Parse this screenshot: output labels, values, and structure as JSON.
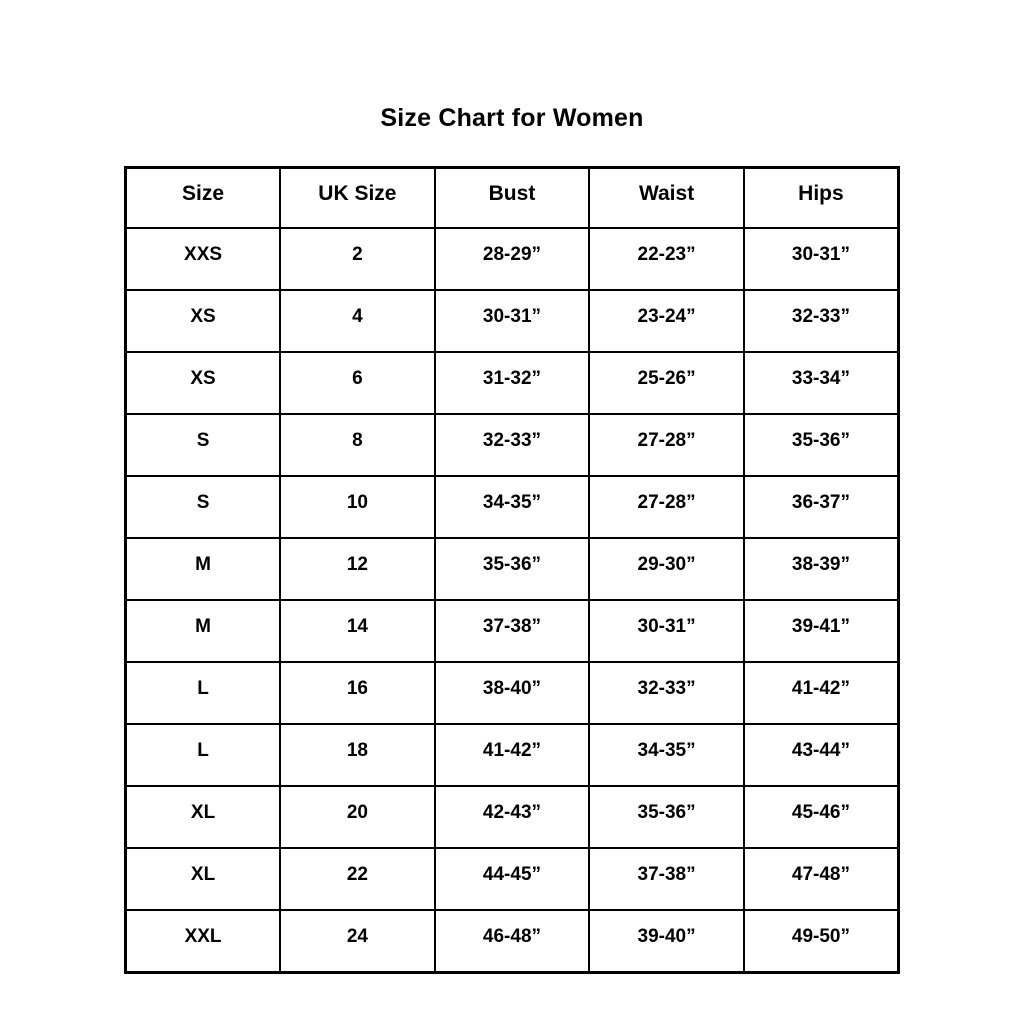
{
  "title": "Size Chart for Women",
  "colors": {
    "background": "#ffffff",
    "border": "#000000",
    "text": "#000000"
  },
  "table": {
    "headers": [
      "Size",
      "UK Size",
      "Bust",
      "Waist",
      "Hips"
    ],
    "rows": [
      [
        "XXS",
        "2",
        "28-29”",
        "22-23”",
        "30-31”"
      ],
      [
        "XS",
        "4",
        "30-31”",
        "23-24”",
        "32-33”"
      ],
      [
        "XS",
        "6",
        "31-32”",
        "25-26”",
        "33-34”"
      ],
      [
        "S",
        "8",
        "32-33”",
        "27-28”",
        "35-36”"
      ],
      [
        "S",
        "10",
        "34-35”",
        "27-28”",
        "36-37”"
      ],
      [
        "M",
        "12",
        "35-36”",
        "29-30”",
        "38-39”"
      ],
      [
        "M",
        "14",
        "37-38”",
        "30-31”",
        "39-41”"
      ],
      [
        "L",
        "16",
        "38-40”",
        "32-33”",
        "41-42”"
      ],
      [
        "L",
        "18",
        "41-42”",
        "34-35”",
        "43-44”"
      ],
      [
        "XL",
        "20",
        "42-43”",
        "35-36”",
        "45-46”"
      ],
      [
        "XL",
        "22",
        "44-45”",
        "37-38”",
        "47-48”"
      ],
      [
        "XXL",
        "24",
        "46-48”",
        "39-40”",
        "49-50”"
      ]
    ]
  },
  "chart_data": {
    "type": "table",
    "title": "Size Chart for Women",
    "columns": [
      "Size",
      "UK Size",
      "Bust",
      "Waist",
      "Hips"
    ],
    "rows": [
      [
        "XXS",
        "2",
        "28-29”",
        "22-23”",
        "30-31”"
      ],
      [
        "XS",
        "4",
        "30-31”",
        "23-24”",
        "32-33”"
      ],
      [
        "XS",
        "6",
        "31-32”",
        "25-26”",
        "33-34”"
      ],
      [
        "S",
        "8",
        "32-33”",
        "27-28”",
        "35-36”"
      ],
      [
        "S",
        "10",
        "34-35”",
        "27-28”",
        "36-37”"
      ],
      [
        "M",
        "12",
        "35-36”",
        "29-30”",
        "38-39”"
      ],
      [
        "M",
        "14",
        "37-38”",
        "30-31”",
        "39-41”"
      ],
      [
        "L",
        "16",
        "38-40”",
        "32-33”",
        "41-42”"
      ],
      [
        "L",
        "18",
        "41-42”",
        "34-35”",
        "43-44”"
      ],
      [
        "XL",
        "20",
        "42-43”",
        "35-36”",
        "45-46”"
      ],
      [
        "XL",
        "22",
        "44-45”",
        "37-38”",
        "47-48”"
      ],
      [
        "XXL",
        "24",
        "46-48”",
        "39-40”",
        "49-50”"
      ]
    ]
  }
}
